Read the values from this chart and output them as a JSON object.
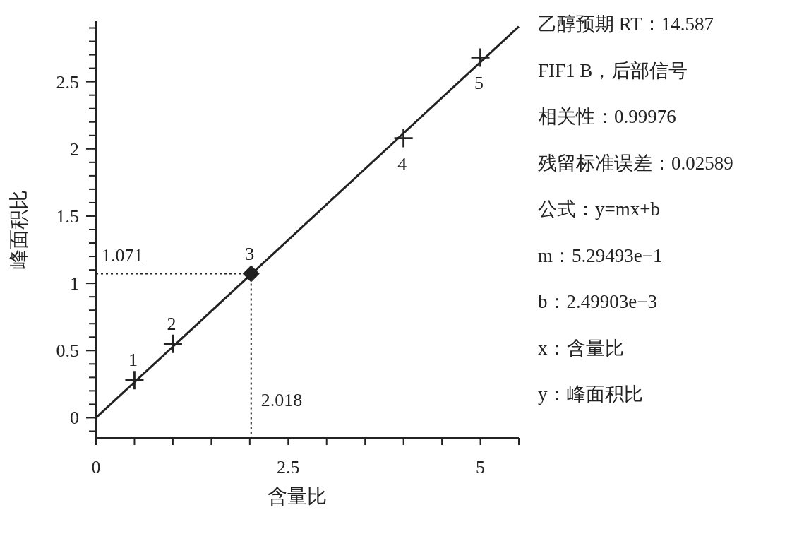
{
  "chart_data": {
    "type": "scatter",
    "xlabel": "含量比",
    "ylabel": "峰面积比",
    "xlim": [
      0,
      5.5
    ],
    "ylim": [
      -0.15,
      2.95
    ],
    "xticks": [
      0,
      {
        "value": 0.5,
        "label": null
      },
      {
        "value": 1,
        "label": null
      },
      {
        "value": 1.5,
        "label": null
      },
      {
        "value": 2,
        "label": null
      },
      2.5,
      {
        "value": 3,
        "label": null
      },
      {
        "value": 3.5,
        "label": null
      },
      {
        "value": 4,
        "label": null
      },
      {
        "value": 4.5,
        "label": null
      },
      5,
      {
        "value": 5.5,
        "label": null
      }
    ],
    "yticks": [
      {
        "value": -0.1,
        "label": null
      },
      0,
      {
        "value": 0.1,
        "label": null
      },
      {
        "value": 0.2,
        "label": null
      },
      {
        "value": 0.3,
        "label": null
      },
      {
        "value": 0.4,
        "label": null
      },
      0.5,
      {
        "value": 0.6,
        "label": null
      },
      {
        "value": 0.7,
        "label": null
      },
      {
        "value": 0.8,
        "label": null
      },
      {
        "value": 0.9,
        "label": null
      },
      1,
      {
        "value": 1.1,
        "label": null
      },
      {
        "value": 1.2,
        "label": null
      },
      {
        "value": 1.3,
        "label": null
      },
      {
        "value": 1.4,
        "label": null
      },
      1.5,
      {
        "value": 1.6,
        "label": null
      },
      {
        "value": 1.7,
        "label": null
      },
      {
        "value": 1.8,
        "label": null
      },
      {
        "value": 1.9,
        "label": null
      },
      2,
      {
        "value": 2.1,
        "label": null
      },
      {
        "value": 2.2,
        "label": null
      },
      {
        "value": 2.3,
        "label": null
      },
      {
        "value": 2.4,
        "label": null
      },
      2.5,
      {
        "value": 2.6,
        "label": null
      },
      {
        "value": 2.7,
        "label": null
      },
      {
        "value": 2.8,
        "label": null
      },
      {
        "value": 2.9,
        "label": null
      }
    ],
    "grid": false,
    "series": [
      {
        "type": "line",
        "color": "#222222",
        "x": [
          0,
          5.5
        ],
        "values": [
          0,
          2.91
        ],
        "marker": "none"
      },
      {
        "color": "#222222",
        "marker": "cross",
        "x": [
          0.5,
          1,
          4,
          5
        ],
        "values": [
          0.28,
          0.55,
          2.08,
          2.68
        ]
      },
      {
        "color": "#222222",
        "marker": "diamond",
        "x": [
          2.018
        ],
        "values": [
          1.071
        ]
      }
    ],
    "ref_lines": [
      {
        "axis": "y",
        "value": 1.071,
        "label": "1.071",
        "line_style": "dotted"
      },
      {
        "axis": "x",
        "value": 2.018,
        "label": "2.018",
        "line_style": "dotted"
      }
    ],
    "annotations": [
      {
        "text": "1",
        "x": 0.5,
        "y": 0.28
      },
      {
        "text": "2",
        "x": 1,
        "y": 0.55
      },
      {
        "text": "3",
        "x": 2.018,
        "y": 1.071
      },
      {
        "text": "4",
        "x": 4,
        "y": 2.08
      },
      {
        "text": "5",
        "x": 5,
        "y": 2.68
      },
      "乙醇预期  RT：14.587",
      "FIF1 B，后部信号",
      "相关性：0.99976",
      "残留标准误差：0.02589",
      "公式：y=mx+b",
      "m：5.29493e−1",
      "b：2.49903e−3",
      "x：含量比",
      "y：峰面积比"
    ]
  }
}
